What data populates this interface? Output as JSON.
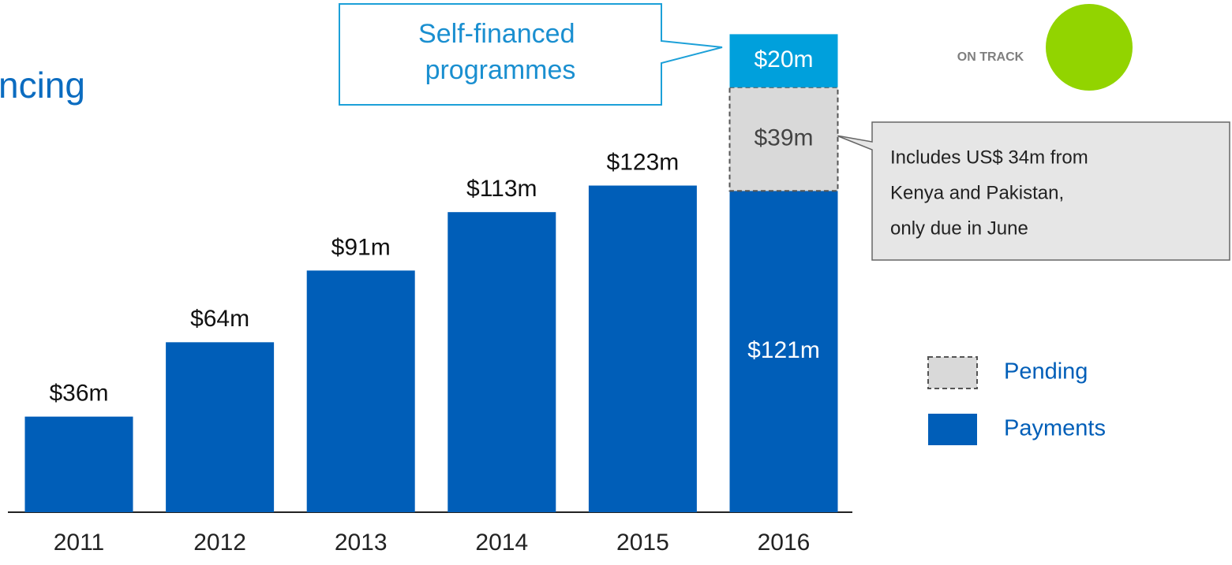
{
  "chart_data": {
    "type": "stacked_bar",
    "title": "ncing",
    "categories": [
      "2011",
      "2012",
      "2013",
      "2014",
      "2015",
      "2016"
    ],
    "series": [
      {
        "name": "Payments",
        "color": "#005eb8",
        "label_color": "#ffffff",
        "legend": true,
        "values": [
          36,
          64,
          91,
          113,
          123,
          121
        ],
        "value_labels": [
          "$36m",
          "$64m",
          "$91m",
          "$113m",
          "$123m",
          "$121m"
        ]
      },
      {
        "name": "Pending",
        "color": "#d9d9d9",
        "label_color": "#444444",
        "dashed": true,
        "legend": true,
        "values": [
          null,
          null,
          null,
          null,
          null,
          39
        ],
        "value_labels": [
          null,
          null,
          null,
          null,
          null,
          "$39m"
        ]
      },
      {
        "name": "Self-financed programmes",
        "color": "#00a0dc",
        "label_color": "#ffffff",
        "legend": false,
        "values": [
          null,
          null,
          null,
          null,
          null,
          20
        ],
        "value_labels": [
          null,
          null,
          null,
          null,
          null,
          "$20m"
        ]
      }
    ],
    "annotation": [
      "Includes US$ 34m from",
      "Kenya and Pakistan,",
      "only due in June"
    ],
    "status": {
      "label": "ON TRACK",
      "color": "#92d400"
    }
  }
}
